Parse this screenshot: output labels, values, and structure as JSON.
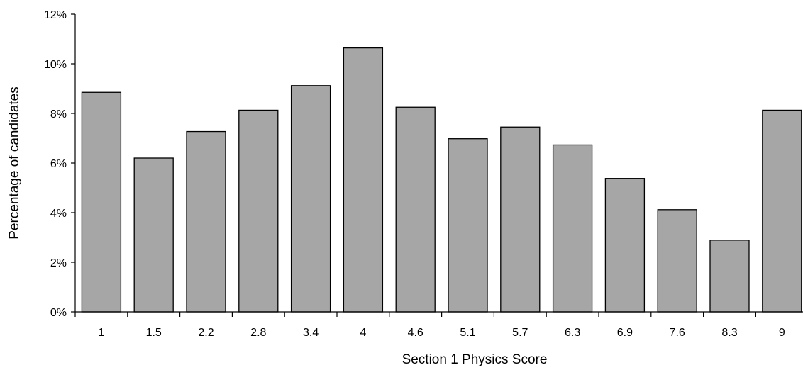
{
  "chart_data": {
    "type": "bar",
    "categories": [
      "1",
      "1.5",
      "2.2",
      "2.8",
      "3.4",
      "4",
      "4.6",
      "5.1",
      "5.7",
      "6.3",
      "6.9",
      "7.6",
      "8.3",
      "9"
    ],
    "values": [
      8.85,
      6.2,
      7.27,
      8.13,
      9.12,
      10.64,
      8.25,
      6.98,
      7.45,
      6.73,
      5.38,
      4.12,
      2.89,
      8.13
    ],
    "xlabel": "Section 1 Physics Score",
    "ylabel": "Percentage of candidates",
    "ylim": [
      0,
      12
    ],
    "yticks": [
      "0%",
      "2%",
      "4%",
      "6%",
      "8%",
      "10%",
      "12%"
    ],
    "bar_color": "#a6a6a6",
    "bar_edge_color": "#000000",
    "grid": false
  }
}
